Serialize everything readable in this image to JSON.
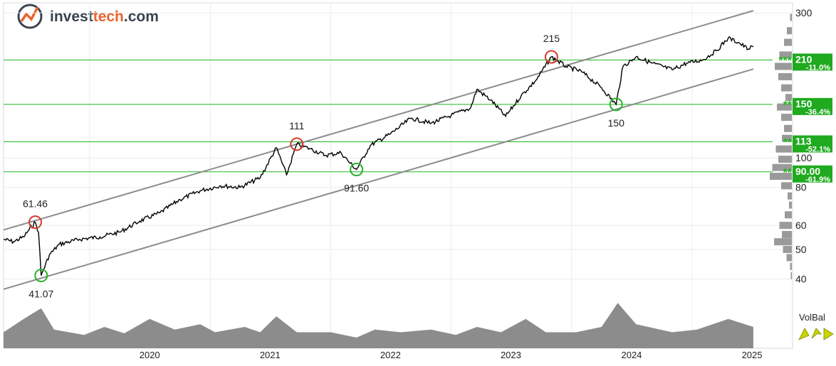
{
  "brand": {
    "name_part1": "invest",
    "name_part2": "tech",
    "name_part3": ".com",
    "accent": "#e8642c",
    "dark": "#3a4450"
  },
  "volbal_label": "VolBal",
  "colors": {
    "price_line": "#000000",
    "channel": "#8c8c8c",
    "support": "#22b522",
    "support_box": "#1faa1f",
    "resistance_circle": "#d23a2a",
    "support_circle": "#2ab12a",
    "volume": "#8c8c8c",
    "arrow": "#c9d400"
  },
  "chart_data": {
    "type": "line",
    "title": "",
    "xlabel": "",
    "ylabel": "",
    "y_scale": "log",
    "ylim": [
      38,
      310
    ],
    "xlim": [
      "2019-04-15",
      "2025-11-01"
    ],
    "grid": true,
    "x_ticks": [
      "2020",
      "2021",
      "2022",
      "2023",
      "2024",
      "2025"
    ],
    "y_ticks": [
      40,
      50,
      60,
      80,
      100,
      300
    ],
    "series": [
      {
        "points": [
          [
            "2019-04-15",
            54
          ],
          [
            "2019-05-15",
            53
          ],
          [
            "2019-06-15",
            55
          ],
          [
            "2019-07-01",
            58
          ],
          [
            "2019-07-20",
            61.46
          ],
          [
            "2019-07-30",
            57
          ],
          [
            "2019-08-07",
            41.07
          ],
          [
            "2019-09-01",
            48
          ],
          [
            "2019-10-01",
            52
          ],
          [
            "2019-12-01",
            54
          ],
          [
            "2020-02-01",
            55
          ],
          [
            "2020-04-01",
            57
          ],
          [
            "2020-06-01",
            62
          ],
          [
            "2020-08-01",
            66
          ],
          [
            "2020-10-01",
            73
          ],
          [
            "2020-12-01",
            78
          ],
          [
            "2021-02-01",
            81
          ],
          [
            "2021-04-01",
            80
          ],
          [
            "2021-06-01",
            86
          ],
          [
            "2021-07-20",
            108
          ],
          [
            "2021-08-20",
            88
          ],
          [
            "2021-09-20",
            111
          ],
          [
            "2021-11-01",
            107
          ],
          [
            "2021-12-15",
            102
          ],
          [
            "2022-02-01",
            104
          ],
          [
            "2022-03-01",
            96
          ],
          [
            "2022-03-20",
            91.6
          ],
          [
            "2022-05-01",
            110
          ],
          [
            "2022-07-01",
            120
          ],
          [
            "2022-09-01",
            135
          ],
          [
            "2022-11-01",
            130
          ],
          [
            "2023-01-01",
            138
          ],
          [
            "2023-03-01",
            146
          ],
          [
            "2023-03-20",
            168
          ],
          [
            "2023-05-01",
            155
          ],
          [
            "2023-06-15",
            137
          ],
          [
            "2023-08-01",
            160
          ],
          [
            "2023-09-15",
            180
          ],
          [
            "2023-11-01",
            215
          ],
          [
            "2023-12-15",
            200
          ],
          [
            "2024-02-01",
            192
          ],
          [
            "2024-04-01",
            170
          ],
          [
            "2024-05-15",
            150
          ],
          [
            "2024-06-05",
            200
          ],
          [
            "2024-07-15",
            215
          ],
          [
            "2024-09-01",
            205
          ],
          [
            "2024-11-01",
            195
          ],
          [
            "2024-12-15",
            205
          ],
          [
            "2025-02-01",
            210
          ],
          [
            "2025-03-15",
            225
          ],
          [
            "2025-04-20",
            248
          ],
          [
            "2025-05-20",
            240
          ],
          [
            "2025-06-20",
            228
          ],
          [
            "2025-07-05",
            232
          ]
        ]
      }
    ],
    "annotations": [
      {
        "label": "61.46",
        "date": "2019-07-20",
        "value": 61.46,
        "kind": "top"
      },
      {
        "label": "41.07",
        "date": "2019-08-07",
        "value": 41.07,
        "kind": "bottom"
      },
      {
        "label": "111",
        "date": "2021-09-20",
        "value": 111,
        "kind": "top"
      },
      {
        "label": "91.60",
        "date": "2022-03-20",
        "value": 91.6,
        "kind": "bottom"
      },
      {
        "label": "215",
        "date": "2023-11-01",
        "value": 215,
        "kind": "top"
      },
      {
        "label": "150",
        "date": "2024-05-15",
        "value": 150,
        "kind": "bottom"
      }
    ],
    "trend_channel": {
      "upper": [
        [
          "2019-04-15",
          58
        ],
        [
          "2025-07-05",
          305
        ]
      ],
      "lower": [
        [
          "2019-04-15",
          37
        ],
        [
          "2025-07-05",
          196
        ]
      ]
    },
    "support_levels": [
      {
        "value": 210,
        "label": "210",
        "pct": "-11.0%",
        "stars": "***"
      },
      {
        "value": 150,
        "label": "150",
        "pct": "-36.4%",
        "stars": "**"
      },
      {
        "value": 113,
        "label": "113",
        "pct": "-52.1%",
        "stars": "**"
      },
      {
        "value": 90,
        "label": "90.00",
        "pct": "-61.9%",
        "stars": "**"
      }
    ],
    "volume_balance": [
      [
        "2019-04-15",
        0.3
      ],
      [
        "2019-06-15",
        0.55
      ],
      [
        "2019-08-07",
        0.75
      ],
      [
        "2019-09-15",
        0.35
      ],
      [
        "2019-12-15",
        0.25
      ],
      [
        "2020-02-15",
        0.4
      ],
      [
        "2020-04-15",
        0.28
      ],
      [
        "2020-07-01",
        0.55
      ],
      [
        "2020-09-15",
        0.35
      ],
      [
        "2020-12-01",
        0.45
      ],
      [
        "2021-01-15",
        0.3
      ],
      [
        "2021-04-15",
        0.4
      ],
      [
        "2021-06-01",
        0.3
      ],
      [
        "2021-07-20",
        0.6
      ],
      [
        "2021-09-20",
        0.3
      ],
      [
        "2022-01-01",
        0.3
      ],
      [
        "2022-03-20",
        0.2
      ],
      [
        "2022-05-15",
        0.35
      ],
      [
        "2022-08-01",
        0.3
      ],
      [
        "2022-11-01",
        0.35
      ],
      [
        "2023-01-15",
        0.25
      ],
      [
        "2023-03-20",
        0.4
      ],
      [
        "2023-06-01",
        0.3
      ],
      [
        "2023-08-15",
        0.55
      ],
      [
        "2023-10-15",
        0.3
      ],
      [
        "2024-01-15",
        0.3
      ],
      [
        "2024-04-01",
        0.4
      ],
      [
        "2024-05-20",
        0.85
      ],
      [
        "2024-07-15",
        0.45
      ],
      [
        "2024-11-01",
        0.3
      ],
      [
        "2025-01-15",
        0.35
      ],
      [
        "2025-04-20",
        0.55
      ],
      [
        "2025-07-05",
        0.4
      ]
    ],
    "volume_profile": [
      [
        290,
        0.05
      ],
      [
        262,
        0.14
      ],
      [
        240,
        0.22
      ],
      [
        218,
        0.35
      ],
      [
        200,
        0.48
      ],
      [
        185,
        0.38
      ],
      [
        170,
        0.3
      ],
      [
        158,
        0.18
      ],
      [
        147,
        0.42
      ],
      [
        136,
        0.3
      ],
      [
        125,
        0.22
      ],
      [
        116,
        0.28
      ],
      [
        107,
        0.45
      ],
      [
        99,
        0.38
      ],
      [
        93,
        0.55
      ],
      [
        87,
        0.62
      ],
      [
        81,
        0.3
      ],
      [
        75,
        0.12
      ],
      [
        70,
        0.08
      ],
      [
        65,
        0.2
      ],
      [
        60,
        0.35
      ],
      [
        56,
        0.28
      ],
      [
        53,
        0.5
      ],
      [
        50,
        0.25
      ],
      [
        47,
        0.15
      ],
      [
        44,
        0.05
      ],
      [
        41,
        0.03
      ]
    ]
  }
}
